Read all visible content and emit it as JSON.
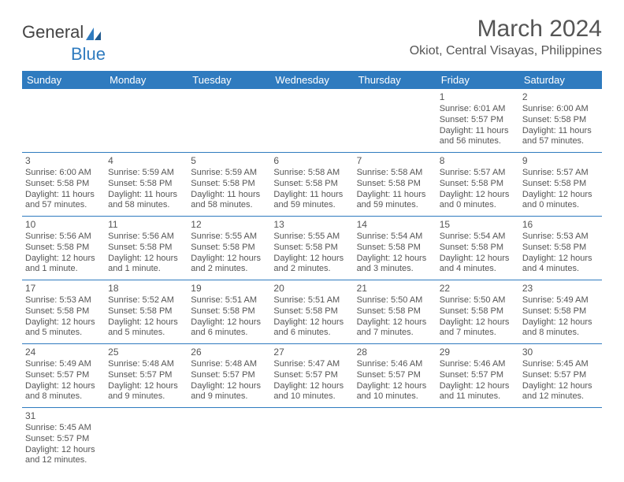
{
  "logo": {
    "general": "General",
    "blue": "Blue"
  },
  "title": "March 2024",
  "location": "Okiot, Central Visayas, Philippines",
  "colors": {
    "header_bg": "#2f7bbf",
    "header_text": "#ffffff",
    "border": "#2f7bbf",
    "text": "#555555"
  },
  "weekdays": [
    "Sunday",
    "Monday",
    "Tuesday",
    "Wednesday",
    "Thursday",
    "Friday",
    "Saturday"
  ],
  "weeks": [
    [
      null,
      null,
      null,
      null,
      null,
      {
        "day": "1",
        "sunrise": "Sunrise: 6:01 AM",
        "sunset": "Sunset: 5:57 PM",
        "daylight": "Daylight: 11 hours and 56 minutes."
      },
      {
        "day": "2",
        "sunrise": "Sunrise: 6:00 AM",
        "sunset": "Sunset: 5:58 PM",
        "daylight": "Daylight: 11 hours and 57 minutes."
      }
    ],
    [
      {
        "day": "3",
        "sunrise": "Sunrise: 6:00 AM",
        "sunset": "Sunset: 5:58 PM",
        "daylight": "Daylight: 11 hours and 57 minutes."
      },
      {
        "day": "4",
        "sunrise": "Sunrise: 5:59 AM",
        "sunset": "Sunset: 5:58 PM",
        "daylight": "Daylight: 11 hours and 58 minutes."
      },
      {
        "day": "5",
        "sunrise": "Sunrise: 5:59 AM",
        "sunset": "Sunset: 5:58 PM",
        "daylight": "Daylight: 11 hours and 58 minutes."
      },
      {
        "day": "6",
        "sunrise": "Sunrise: 5:58 AM",
        "sunset": "Sunset: 5:58 PM",
        "daylight": "Daylight: 11 hours and 59 minutes."
      },
      {
        "day": "7",
        "sunrise": "Sunrise: 5:58 AM",
        "sunset": "Sunset: 5:58 PM",
        "daylight": "Daylight: 11 hours and 59 minutes."
      },
      {
        "day": "8",
        "sunrise": "Sunrise: 5:57 AM",
        "sunset": "Sunset: 5:58 PM",
        "daylight": "Daylight: 12 hours and 0 minutes."
      },
      {
        "day": "9",
        "sunrise": "Sunrise: 5:57 AM",
        "sunset": "Sunset: 5:58 PM",
        "daylight": "Daylight: 12 hours and 0 minutes."
      }
    ],
    [
      {
        "day": "10",
        "sunrise": "Sunrise: 5:56 AM",
        "sunset": "Sunset: 5:58 PM",
        "daylight": "Daylight: 12 hours and 1 minute."
      },
      {
        "day": "11",
        "sunrise": "Sunrise: 5:56 AM",
        "sunset": "Sunset: 5:58 PM",
        "daylight": "Daylight: 12 hours and 1 minute."
      },
      {
        "day": "12",
        "sunrise": "Sunrise: 5:55 AM",
        "sunset": "Sunset: 5:58 PM",
        "daylight": "Daylight: 12 hours and 2 minutes."
      },
      {
        "day": "13",
        "sunrise": "Sunrise: 5:55 AM",
        "sunset": "Sunset: 5:58 PM",
        "daylight": "Daylight: 12 hours and 2 minutes."
      },
      {
        "day": "14",
        "sunrise": "Sunrise: 5:54 AM",
        "sunset": "Sunset: 5:58 PM",
        "daylight": "Daylight: 12 hours and 3 minutes."
      },
      {
        "day": "15",
        "sunrise": "Sunrise: 5:54 AM",
        "sunset": "Sunset: 5:58 PM",
        "daylight": "Daylight: 12 hours and 4 minutes."
      },
      {
        "day": "16",
        "sunrise": "Sunrise: 5:53 AM",
        "sunset": "Sunset: 5:58 PM",
        "daylight": "Daylight: 12 hours and 4 minutes."
      }
    ],
    [
      {
        "day": "17",
        "sunrise": "Sunrise: 5:53 AM",
        "sunset": "Sunset: 5:58 PM",
        "daylight": "Daylight: 12 hours and 5 minutes."
      },
      {
        "day": "18",
        "sunrise": "Sunrise: 5:52 AM",
        "sunset": "Sunset: 5:58 PM",
        "daylight": "Daylight: 12 hours and 5 minutes."
      },
      {
        "day": "19",
        "sunrise": "Sunrise: 5:51 AM",
        "sunset": "Sunset: 5:58 PM",
        "daylight": "Daylight: 12 hours and 6 minutes."
      },
      {
        "day": "20",
        "sunrise": "Sunrise: 5:51 AM",
        "sunset": "Sunset: 5:58 PM",
        "daylight": "Daylight: 12 hours and 6 minutes."
      },
      {
        "day": "21",
        "sunrise": "Sunrise: 5:50 AM",
        "sunset": "Sunset: 5:58 PM",
        "daylight": "Daylight: 12 hours and 7 minutes."
      },
      {
        "day": "22",
        "sunrise": "Sunrise: 5:50 AM",
        "sunset": "Sunset: 5:58 PM",
        "daylight": "Daylight: 12 hours and 7 minutes."
      },
      {
        "day": "23",
        "sunrise": "Sunrise: 5:49 AM",
        "sunset": "Sunset: 5:58 PM",
        "daylight": "Daylight: 12 hours and 8 minutes."
      }
    ],
    [
      {
        "day": "24",
        "sunrise": "Sunrise: 5:49 AM",
        "sunset": "Sunset: 5:57 PM",
        "daylight": "Daylight: 12 hours and 8 minutes."
      },
      {
        "day": "25",
        "sunrise": "Sunrise: 5:48 AM",
        "sunset": "Sunset: 5:57 PM",
        "daylight": "Daylight: 12 hours and 9 minutes."
      },
      {
        "day": "26",
        "sunrise": "Sunrise: 5:48 AM",
        "sunset": "Sunset: 5:57 PM",
        "daylight": "Daylight: 12 hours and 9 minutes."
      },
      {
        "day": "27",
        "sunrise": "Sunrise: 5:47 AM",
        "sunset": "Sunset: 5:57 PM",
        "daylight": "Daylight: 12 hours and 10 minutes."
      },
      {
        "day": "28",
        "sunrise": "Sunrise: 5:46 AM",
        "sunset": "Sunset: 5:57 PM",
        "daylight": "Daylight: 12 hours and 10 minutes."
      },
      {
        "day": "29",
        "sunrise": "Sunrise: 5:46 AM",
        "sunset": "Sunset: 5:57 PM",
        "daylight": "Daylight: 12 hours and 11 minutes."
      },
      {
        "day": "30",
        "sunrise": "Sunrise: 5:45 AM",
        "sunset": "Sunset: 5:57 PM",
        "daylight": "Daylight: 12 hours and 12 minutes."
      }
    ],
    [
      {
        "day": "31",
        "sunrise": "Sunrise: 5:45 AM",
        "sunset": "Sunset: 5:57 PM",
        "daylight": "Daylight: 12 hours and 12 minutes."
      },
      null,
      null,
      null,
      null,
      null,
      null
    ]
  ]
}
